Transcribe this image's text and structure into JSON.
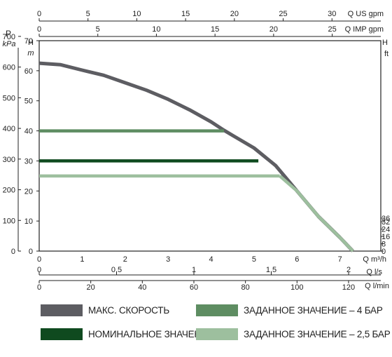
{
  "chart_data": {
    "type": "line",
    "title": "",
    "grid": true,
    "axes": {
      "left_outer": {
        "label_line1": "P",
        "label_line2": "kPa",
        "unit_label": "kPa",
        "ticks": [
          0,
          100,
          200,
          300,
          400,
          500,
          600,
          700
        ],
        "range": [
          0,
          686
        ]
      },
      "left_inner": {
        "label": "H",
        "unit_label": "m",
        "ticks": [
          0,
          10,
          20,
          30,
          40,
          50,
          60,
          70
        ],
        "range": [
          0,
          70
        ]
      },
      "right": {
        "label": "H",
        "unit_label": "ft",
        "ticks": [
          0,
          8,
          16,
          24,
          32,
          36
        ],
        "range": [
          0,
          229.7
        ]
      },
      "top_1": {
        "label": "Q US gpm",
        "ticks": [
          0,
          5,
          10,
          15,
          20,
          25,
          30
        ],
        "range_m3h": [
          0,
          7.95
        ]
      },
      "top_2": {
        "label": "Q IMP gpm",
        "ticks": [
          0,
          5,
          10,
          15,
          20,
          25
        ],
        "range_m3h": [
          0,
          7.95
        ]
      },
      "bottom_1": {
        "label": "Q m³/h",
        "ticks": [
          0,
          1,
          2,
          3,
          4,
          5,
          6,
          7
        ],
        "range": [
          0,
          7.95
        ]
      },
      "bottom_2": {
        "label": "Q l/s",
        "ticks": [
          "0",
          "0,5",
          "1",
          "1,5",
          "2"
        ],
        "tick_values": [
          0,
          0.5,
          1,
          1.5,
          2
        ],
        "range": [
          0,
          2.208
        ]
      },
      "bottom_3": {
        "label": "Q l/min",
        "ticks": [
          0,
          20,
          40,
          60,
          80,
          100,
          120
        ],
        "range": [
          0,
          132.5
        ]
      }
    },
    "x_unit": "m3/h",
    "y_unit": "m",
    "series": [
      {
        "name": "МАКС. СКОРОСТЬ",
        "color": "#5d5d62",
        "x": [
          0,
          0.5,
          1,
          1.5,
          2,
          2.5,
          3,
          3.5,
          4,
          4.3,
          4.5,
          5,
          5.5,
          6,
          6.5,
          7,
          7.3
        ],
        "y": [
          62.5,
          62,
          60.2,
          58.5,
          56,
          53.5,
          50.5,
          47,
          43,
          40.2,
          38.5,
          34.3,
          28.5,
          20,
          11.5,
          4.5,
          0
        ]
      },
      {
        "name": "ЗАДАННОЕ ЗНАЧЕНИЕ – 4 БАР",
        "color": "#5e8d62",
        "x": [
          0,
          4.3
        ],
        "y": [
          40,
          40
        ]
      },
      {
        "name": "НОМИНАЛЬНОЕ ЗНАЧЕНИЕ",
        "color": "#0f4a1f",
        "x": [
          0,
          5.1
        ],
        "y": [
          30,
          30
        ]
      },
      {
        "name": "ЗАДАННОЕ ЗНАЧЕНИЕ – 2,5 БАР",
        "color": "#9dbf9e",
        "x": [
          0,
          5.6
        ],
        "y": [
          25,
          25
        ]
      }
    ],
    "legend": {
      "placement": "bottom",
      "items": [
        {
          "label": "МАКС. СКОРОСТЬ",
          "color": "#5d5d62"
        },
        {
          "label": "ЗАДАННОЕ ЗНАЧЕНИЕ – 4 БАР",
          "color": "#5e8d62"
        },
        {
          "label": "НОМИНАЛЬНОЕ ЗНАЧЕНИЕ",
          "color": "#0f4a1f"
        },
        {
          "label": "ЗАДАННОЕ ЗНАЧЕНИЕ – 2,5 БАР",
          "color": "#9dbf9e"
        }
      ]
    }
  }
}
